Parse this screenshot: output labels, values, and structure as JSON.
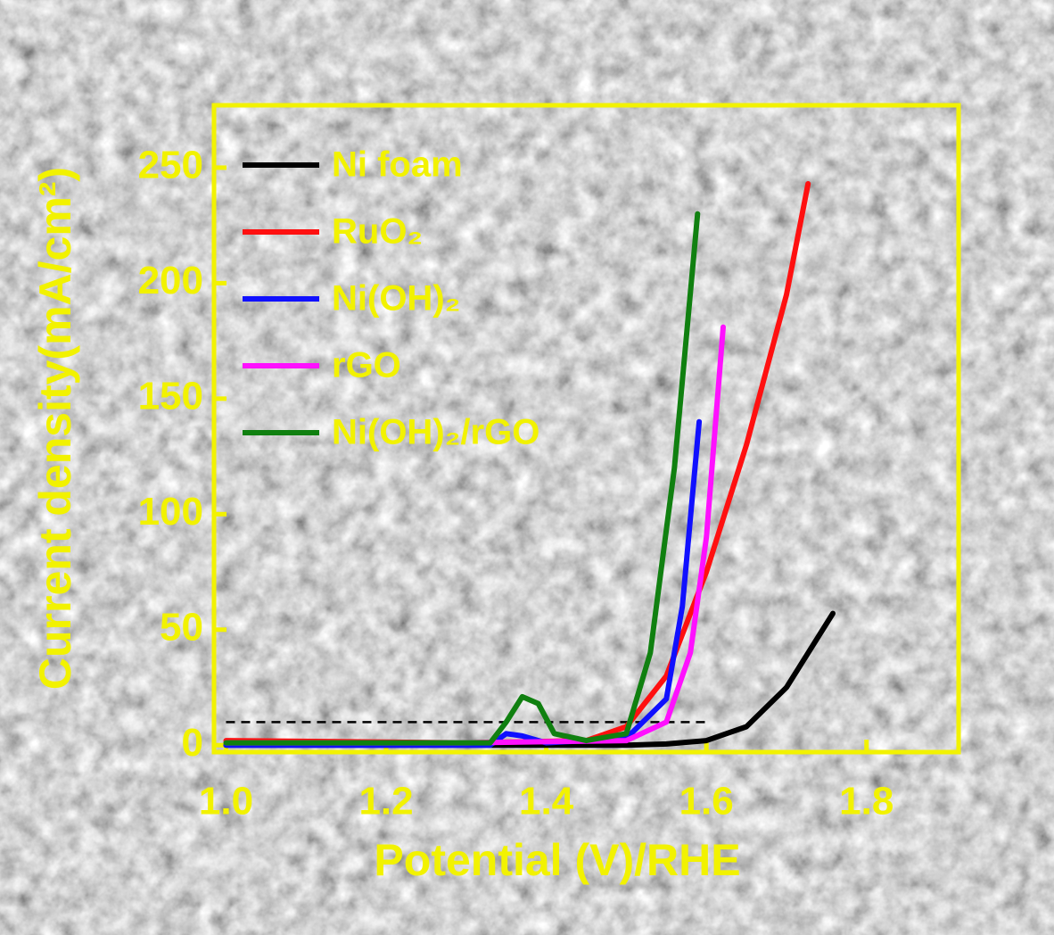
{
  "chart_data": {
    "type": "line",
    "x_label": "Potential (V)/RHE",
    "y_label": "Current density(mA/cm²)",
    "xlim": [
      0.985,
      1.915
    ],
    "ylim": [
      -3,
      277
    ],
    "xticks": [
      {
        "value": 1.0,
        "label": "1.0"
      },
      1.2,
      1.4,
      1.6,
      1.8
    ],
    "yticks": [
      0,
      50,
      100,
      150,
      200,
      250
    ],
    "reference_line": {
      "y": 10,
      "x": [
        1.0,
        1.6
      ]
    },
    "legend": "upper left",
    "series": [
      {
        "name": "Ni foam",
        "color": "#000000",
        "x": [
          1.0,
          1.3,
          1.5,
          1.55,
          1.6,
          1.65,
          1.7,
          1.758
        ],
        "values": [
          0,
          0,
          0,
          0.5,
          2,
          8,
          25,
          57
        ]
      },
      {
        "name": "RuO₂",
        "color": "#ff1010",
        "x": [
          1.0,
          1.3,
          1.45,
          1.5,
          1.55,
          1.6,
          1.65,
          1.7,
          1.727
        ],
        "values": [
          2,
          1,
          2,
          8,
          30,
          75,
          130,
          195,
          243
        ]
      },
      {
        "name": "Ni(OH)₂",
        "color": "#1010ff",
        "x": [
          1.0,
          1.33,
          1.35,
          1.37,
          1.4,
          1.5,
          1.55,
          1.57,
          1.591
        ],
        "values": [
          0,
          0,
          5,
          4,
          1,
          3,
          20,
          60,
          140
        ]
      },
      {
        "name": "rGO",
        "color": "#ff10ff",
        "x": [
          1.0,
          1.3,
          1.5,
          1.55,
          1.58,
          1.6,
          1.621
        ],
        "values": [
          1,
          1,
          2,
          10,
          40,
          90,
          181
        ]
      },
      {
        "name": "Ni(OH)₂/rGO",
        "color": "#108010",
        "x": [
          1.0,
          1.33,
          1.35,
          1.37,
          1.39,
          1.41,
          1.45,
          1.5,
          1.53,
          1.56,
          1.589
        ],
        "values": [
          1,
          1,
          10,
          21,
          18,
          5,
          2,
          5,
          40,
          120,
          230
        ]
      }
    ]
  }
}
